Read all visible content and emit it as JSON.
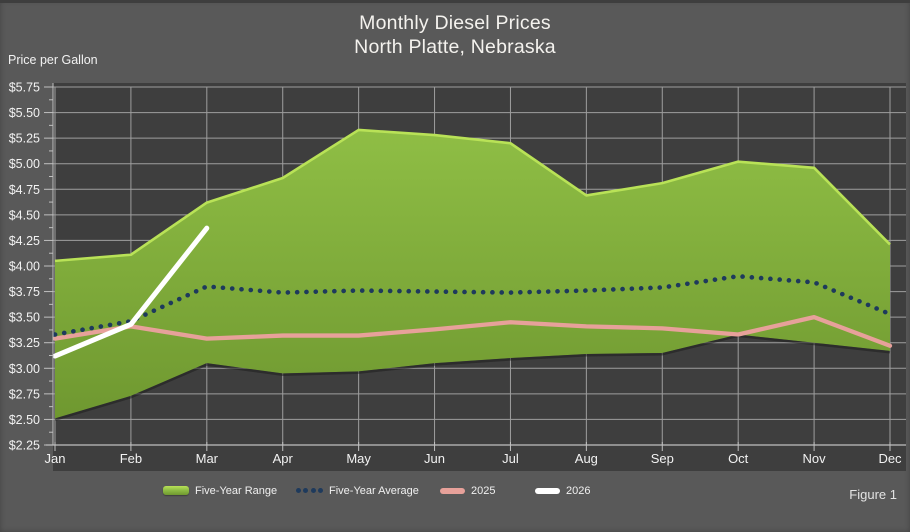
{
  "title": {
    "line1": "Monthly Diesel Prices",
    "line2": "North Platte, Nebraska"
  },
  "y_axis_title": "Price per Gallon",
  "figure_caption": "Figure 1",
  "legend": [
    {
      "label": "Five-Year Range"
    },
    {
      "label": "Five-Year Average"
    },
    {
      "label": "2025"
    },
    {
      "label": "2026"
    }
  ],
  "colors": {
    "background": "#595959",
    "plot_background": "#3e3e3e",
    "gridline": "#9e9e9e",
    "axis": "#c0c0c0",
    "text": "#f2f2f2",
    "band_fill_top": "#8fbe45",
    "band_fill_bottom": "#6f9830",
    "band_edge": "#b9e257",
    "five_year_average": "#1e3a5c",
    "y2025": "#e7a19a",
    "y2026": "#ffffff"
  },
  "chart_data": {
    "type": "area",
    "title": "Monthly Diesel Prices - North Platte, Nebraska",
    "ylabel": "Price per Gallon",
    "xlabel": "",
    "x": [
      "Jan",
      "Feb",
      "Mar",
      "Apr",
      "May",
      "Jun",
      "Jul",
      "Aug",
      "Sep",
      "Oct",
      "Nov",
      "Dec"
    ],
    "ylim": [
      2.25,
      5.75
    ],
    "y_ticks": [
      "$2.25",
      "$2.50",
      "$2.75",
      "$3.00",
      "$3.25",
      "$3.50",
      "$3.75",
      "$4.00",
      "$4.25",
      "$4.50",
      "$4.75",
      "$5.00",
      "$5.25",
      "$5.50",
      "$5.75"
    ],
    "grid": true,
    "legend_position": "bottom",
    "series": [
      {
        "name": "Five-Year Range",
        "type": "band",
        "high": [
          4.05,
          4.11,
          4.62,
          4.86,
          5.33,
          5.28,
          5.2,
          4.69,
          4.81,
          5.02,
          4.96,
          4.21
        ],
        "low": [
          2.51,
          2.73,
          3.05,
          2.95,
          2.97,
          3.05,
          3.1,
          3.14,
          3.15,
          3.33,
          3.25,
          3.17
        ]
      },
      {
        "name": "Five-Year Average",
        "type": "line",
        "style": "dotted",
        "color": "#1e3a5c",
        "values": [
          3.33,
          3.46,
          3.8,
          3.74,
          3.76,
          3.75,
          3.74,
          3.76,
          3.79,
          3.9,
          3.84,
          3.53
        ]
      },
      {
        "name": "2025",
        "type": "line",
        "style": "solid",
        "color": "#e7a19a",
        "values": [
          3.29,
          3.41,
          3.29,
          3.32,
          3.32,
          3.38,
          3.45,
          3.41,
          3.39,
          3.33,
          3.5,
          3.22
        ]
      },
      {
        "name": "2026",
        "type": "line",
        "style": "solid",
        "color": "#ffffff",
        "values": [
          3.12,
          3.43,
          4.37,
          null,
          null,
          null,
          null,
          null,
          null,
          null,
          null,
          null
        ]
      }
    ]
  }
}
